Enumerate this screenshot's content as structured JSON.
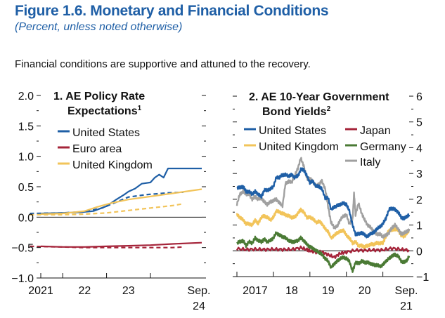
{
  "figure": {
    "title": "Figure 1.6.  Monetary and Financial Conditions",
    "subtitle": "(Percent, unless noted otherwise)",
    "caption": "Financial conditions are supportive and attuned to the recovery."
  },
  "colors": {
    "title": "#1f5fa6",
    "united_states": "#1f5fa6",
    "euro_area": "#a5243a",
    "united_kingdom": "#f2c45a",
    "japan": "#a5243a",
    "germany": "#4a7a34",
    "italy": "#a0a0a0"
  },
  "chart_data": [
    {
      "type": "line",
      "title": "1. AE Policy Rate Expectations",
      "title_line1": "1. AE Policy Rate",
      "title_line2": "Expectations",
      "title_sup": "1",
      "xlabel": "",
      "ylabel": "Percent",
      "ylim": [
        -1.0,
        2.0
      ],
      "yticks": [
        -1.0,
        -0.5,
        0.0,
        0.5,
        1.0,
        1.5,
        2.0
      ],
      "ytick_labels": [
        "−1.0",
        "−0.5",
        "0.0",
        "0.5",
        "1.0",
        "1.5",
        "2.0"
      ],
      "xlim": [
        2021.0,
        2024.67
      ],
      "xticks": [
        2021.5,
        2022.5,
        2023.5
      ],
      "xtick_labels": [
        {
          "x": 2021.0,
          "text": "2021"
        },
        {
          "x": 2022.0,
          "text": "22"
        },
        {
          "x": 2023.0,
          "text": "23"
        },
        {
          "x": 2024.67,
          "text": "Sep.",
          "text2": "24"
        }
      ],
      "legend": [
        {
          "name": "United States",
          "color_key": "united_states"
        },
        {
          "name": "Euro area",
          "color_key": "euro_area"
        },
        {
          "name": "United Kingdom",
          "color_key": "united_kingdom"
        }
      ],
      "legend_position": "top-left",
      "series": [
        {
          "name": "United States",
          "style": "solid",
          "color_key": "united_states",
          "x": [
            2021.0,
            2021.5,
            2021.9,
            2022.2,
            2022.5,
            2022.7,
            2022.9,
            2023.0,
            2023.15,
            2023.3,
            2023.5,
            2023.6,
            2023.7,
            2023.8,
            2023.9,
            2024.0,
            2024.67
          ],
          "y": [
            0.06,
            0.07,
            0.08,
            0.1,
            0.18,
            0.28,
            0.37,
            0.42,
            0.47,
            0.55,
            0.57,
            0.65,
            0.7,
            0.65,
            0.8,
            0.8,
            0.8
          ]
        },
        {
          "name": "United States (earlier)",
          "style": "dashed",
          "color_key": "united_states",
          "x": [
            2020.75,
            2021.5,
            2022.0,
            2022.4,
            2022.7,
            2023.0,
            2023.4,
            2023.9,
            2024.25
          ],
          "y": [
            0.06,
            0.07,
            0.09,
            0.15,
            0.24,
            0.33,
            0.37,
            0.4,
            0.41
          ]
        },
        {
          "name": "Euro area",
          "style": "solid",
          "color_key": "euro_area",
          "x": [
            2021.0,
            2021.5,
            2022.0,
            2022.5,
            2023.0,
            2023.5,
            2024.0,
            2024.67
          ],
          "y": [
            -0.48,
            -0.49,
            -0.49,
            -0.48,
            -0.47,
            -0.46,
            -0.44,
            -0.42
          ]
        },
        {
          "name": "Euro area (earlier)",
          "style": "dashed",
          "color_key": "euro_area",
          "x": [
            2020.75,
            2021.5,
            2022.0,
            2022.5,
            2023.0,
            2023.5,
            2024.0,
            2024.25
          ],
          "y": [
            -0.48,
            -0.49,
            -0.5,
            -0.5,
            -0.5,
            -0.5,
            -0.5,
            -0.49
          ]
        },
        {
          "name": "United Kingdom",
          "style": "solid",
          "color_key": "united_kingdom",
          "x": [
            2021.0,
            2021.5,
            2022.0,
            2022.3,
            2022.6,
            2023.0,
            2023.5,
            2024.0,
            2024.67
          ],
          "y": [
            0.05,
            0.06,
            0.1,
            0.17,
            0.23,
            0.29,
            0.34,
            0.39,
            0.46
          ]
        },
        {
          "name": "United Kingdom (earlier)",
          "style": "dashed",
          "color_key": "united_kingdom",
          "x": [
            2020.75,
            2021.5,
            2022.0,
            2022.5,
            2023.0,
            2023.5,
            2024.0,
            2024.25
          ],
          "y": [
            0.04,
            0.04,
            0.05,
            0.07,
            0.11,
            0.15,
            0.19,
            0.22
          ]
        }
      ]
    },
    {
      "type": "line",
      "title": "2. AE 10-Year Government Bond Yields",
      "title_line1": "2. AE 10-Year Government",
      "title_line2": "Bond Yields",
      "title_sup": "2",
      "xlabel": "",
      "ylabel": "Percent",
      "ylim": [
        -1,
        6
      ],
      "yticks": [
        -1,
        0,
        1,
        2,
        3,
        4,
        5,
        6
      ],
      "ytick_labels": [
        "−1",
        "0",
        "1",
        "2",
        "3",
        "4",
        "5",
        "6"
      ],
      "xlim": [
        2017.0,
        2021.72
      ],
      "xticks": [
        2018.0,
        2019.0,
        2020.0,
        2021.0
      ],
      "xtick_labels": [
        {
          "x": 2017.5,
          "text": "2017"
        },
        {
          "x": 2018.5,
          "text": "18"
        },
        {
          "x": 2019.5,
          "text": "19"
        },
        {
          "x": 2020.5,
          "text": "20"
        },
        {
          "x": 2021.72,
          "text": "Sep.",
          "text2": "21"
        }
      ],
      "legend": [
        {
          "name": "United States",
          "color_key": "united_states"
        },
        {
          "name": "United Kingdom",
          "color_key": "united_kingdom"
        },
        {
          "name": "Japan",
          "color_key": "japan"
        },
        {
          "name": "Germany",
          "color_key": "germany"
        },
        {
          "name": "Italy",
          "color_key": "italy"
        }
      ],
      "legend_position": "top",
      "series": [
        {
          "name": "United States",
          "color_key": "united_states",
          "x": [
            2017.0,
            2017.08,
            2017.17,
            2017.25,
            2017.33,
            2017.42,
            2017.5,
            2017.58,
            2017.67,
            2017.75,
            2017.83,
            2017.92,
            2018.0,
            2018.08,
            2018.17,
            2018.25,
            2018.33,
            2018.42,
            2018.5,
            2018.58,
            2018.67,
            2018.75,
            2018.83,
            2018.92,
            2019.0,
            2019.08,
            2019.17,
            2019.25,
            2019.33,
            2019.42,
            2019.5,
            2019.58,
            2019.67,
            2019.75,
            2019.83,
            2019.92,
            2020.0,
            2020.08,
            2020.17,
            2020.25,
            2020.33,
            2020.42,
            2020.5,
            2020.58,
            2020.67,
            2020.75,
            2020.83,
            2020.92,
            2021.0,
            2021.08,
            2021.17,
            2021.25,
            2021.33,
            2021.42,
            2021.5,
            2021.58,
            2021.67,
            2021.72
          ],
          "y": [
            2.45,
            2.45,
            2.5,
            2.3,
            2.3,
            2.2,
            2.3,
            2.2,
            2.1,
            2.35,
            2.35,
            2.4,
            2.5,
            2.85,
            2.85,
            2.95,
            2.95,
            2.9,
            2.95,
            2.85,
            2.9,
            3.15,
            3.15,
            2.9,
            2.65,
            2.7,
            2.5,
            2.5,
            2.4,
            2.05,
            2.05,
            1.6,
            1.7,
            1.75,
            1.8,
            1.85,
            1.8,
            1.55,
            1.0,
            0.65,
            0.65,
            0.7,
            0.62,
            0.55,
            0.68,
            0.7,
            0.85,
            0.93,
            1.05,
            1.25,
            1.6,
            1.65,
            1.6,
            1.5,
            1.3,
            1.25,
            1.35,
            1.4
          ]
        },
        {
          "name": "United Kingdom",
          "color_key": "united_kingdom",
          "x": [
            2017.0,
            2017.08,
            2017.17,
            2017.25,
            2017.33,
            2017.42,
            2017.5,
            2017.58,
            2017.67,
            2017.75,
            2017.83,
            2017.92,
            2018.0,
            2018.08,
            2018.17,
            2018.25,
            2018.33,
            2018.42,
            2018.5,
            2018.58,
            2018.67,
            2018.75,
            2018.83,
            2018.92,
            2019.0,
            2019.08,
            2019.17,
            2019.25,
            2019.33,
            2019.42,
            2019.5,
            2019.58,
            2019.67,
            2019.75,
            2019.83,
            2019.92,
            2020.0,
            2020.08,
            2020.17,
            2020.25,
            2020.33,
            2020.42,
            2020.5,
            2020.58,
            2020.67,
            2020.75,
            2020.83,
            2020.92,
            2021.0,
            2021.08,
            2021.17,
            2021.25,
            2021.33,
            2021.42,
            2021.5,
            2021.58,
            2021.67,
            2021.72
          ],
          "y": [
            1.4,
            1.3,
            1.2,
            1.05,
            1.05,
            1.0,
            1.2,
            1.05,
            1.3,
            1.35,
            1.3,
            1.2,
            1.3,
            1.55,
            1.5,
            1.45,
            1.4,
            1.35,
            1.3,
            1.3,
            1.45,
            1.6,
            1.5,
            1.3,
            1.3,
            1.25,
            1.1,
            1.15,
            1.05,
            0.85,
            0.75,
            0.5,
            0.6,
            0.7,
            0.75,
            0.8,
            0.6,
            0.5,
            0.3,
            0.35,
            0.2,
            0.2,
            0.15,
            0.2,
            0.25,
            0.25,
            0.3,
            0.3,
            0.3,
            0.55,
            0.8,
            0.8,
            0.85,
            0.8,
            0.6,
            0.55,
            0.7,
            0.8
          ]
        },
        {
          "name": "Japan",
          "color_key": "japan",
          "x": [
            2017.0,
            2017.25,
            2017.5,
            2017.75,
            2018.0,
            2018.25,
            2018.5,
            2018.75,
            2018.92,
            2019.0,
            2019.17,
            2019.33,
            2019.5,
            2019.67,
            2019.83,
            2020.0,
            2020.25,
            2020.5,
            2020.75,
            2021.0,
            2021.25,
            2021.5,
            2021.72
          ],
          "y": [
            0.08,
            0.05,
            0.06,
            0.05,
            0.06,
            0.05,
            0.05,
            0.12,
            0.05,
            0.0,
            -0.05,
            -0.05,
            -0.15,
            -0.25,
            -0.1,
            -0.05,
            0.02,
            0.02,
            0.03,
            0.03,
            0.1,
            0.05,
            0.03
          ]
        },
        {
          "name": "Germany",
          "color_key": "germany",
          "x": [
            2017.0,
            2017.08,
            2017.17,
            2017.25,
            2017.33,
            2017.42,
            2017.5,
            2017.58,
            2017.67,
            2017.75,
            2017.83,
            2017.92,
            2018.0,
            2018.08,
            2018.17,
            2018.25,
            2018.33,
            2018.42,
            2018.5,
            2018.58,
            2018.67,
            2018.75,
            2018.83,
            2018.92,
            2019.0,
            2019.08,
            2019.17,
            2019.25,
            2019.33,
            2019.42,
            2019.5,
            2019.58,
            2019.67,
            2019.75,
            2019.83,
            2019.92,
            2020.0,
            2020.08,
            2020.17,
            2020.25,
            2020.33,
            2020.42,
            2020.5,
            2020.58,
            2020.67,
            2020.75,
            2020.83,
            2020.92,
            2021.0,
            2021.08,
            2021.17,
            2021.25,
            2021.33,
            2021.42,
            2021.5,
            2021.58,
            2021.67,
            2021.72
          ],
          "y": [
            0.3,
            0.35,
            0.4,
            0.2,
            0.35,
            0.3,
            0.5,
            0.4,
            0.35,
            0.45,
            0.35,
            0.4,
            0.5,
            0.7,
            0.6,
            0.55,
            0.5,
            0.4,
            0.35,
            0.35,
            0.4,
            0.5,
            0.4,
            0.25,
            0.15,
            0.1,
            0.0,
            -0.05,
            -0.15,
            -0.3,
            -0.4,
            -0.65,
            -0.5,
            -0.4,
            -0.3,
            -0.25,
            -0.3,
            -0.4,
            -0.8,
            -0.45,
            -0.5,
            -0.4,
            -0.45,
            -0.45,
            -0.5,
            -0.55,
            -0.55,
            -0.6,
            -0.55,
            -0.4,
            -0.3,
            -0.2,
            -0.15,
            -0.2,
            -0.4,
            -0.45,
            -0.35,
            -0.2
          ]
        },
        {
          "name": "Italy",
          "color_key": "italy",
          "x": [
            2017.0,
            2017.08,
            2017.17,
            2017.25,
            2017.33,
            2017.42,
            2017.5,
            2017.58,
            2017.67,
            2017.75,
            2017.83,
            2017.92,
            2018.0,
            2018.08,
            2018.17,
            2018.25,
            2018.33,
            2018.42,
            2018.5,
            2018.58,
            2018.67,
            2018.75,
            2018.83,
            2018.92,
            2019.0,
            2019.08,
            2019.17,
            2019.25,
            2019.33,
            2019.42,
            2019.5,
            2019.58,
            2019.67,
            2019.75,
            2019.83,
            2019.92,
            2020.0,
            2020.08,
            2020.17,
            2020.21,
            2020.25,
            2020.33,
            2020.42,
            2020.5,
            2020.58,
            2020.67,
            2020.75,
            2020.83,
            2020.92,
            2021.0,
            2021.08,
            2021.17,
            2021.25,
            2021.33,
            2021.42,
            2021.5,
            2021.58,
            2021.67,
            2021.72
          ],
          "y": [
            1.8,
            2.2,
            2.3,
            2.2,
            2.2,
            2.0,
            2.1,
            2.0,
            2.05,
            1.9,
            1.8,
            1.9,
            1.95,
            2.0,
            1.85,
            1.75,
            2.6,
            2.7,
            2.65,
            2.9,
            3.2,
            3.6,
            3.3,
            2.8,
            2.8,
            2.7,
            2.5,
            2.6,
            2.7,
            2.4,
            1.7,
            1.1,
            0.9,
            0.95,
            1.2,
            1.35,
            1.4,
            1.05,
            1.2,
            2.25,
            1.4,
            1.85,
            1.45,
            1.2,
            1.0,
            0.9,
            0.75,
            0.65,
            0.65,
            0.55,
            0.6,
            0.7,
            0.9,
            1.0,
            0.85,
            0.65,
            0.7,
            0.75,
            0.85
          ]
        }
      ]
    }
  ]
}
